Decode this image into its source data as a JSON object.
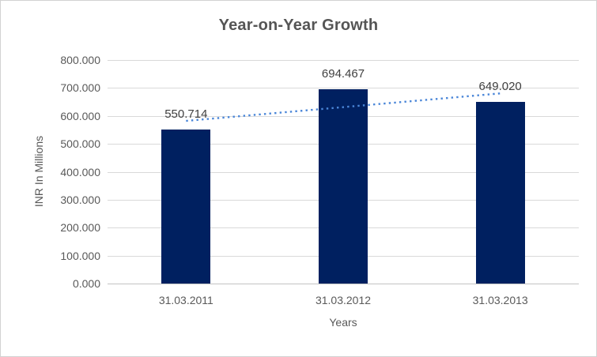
{
  "chart_data": {
    "type": "bar",
    "title": "Year-on-Year Growth",
    "xlabel": "Years",
    "ylabel": "INR In Millions",
    "categories": [
      "31.03.2011",
      "31.03.2012",
      "31.03.2013"
    ],
    "values": [
      550.714,
      694.467,
      649.02
    ],
    "data_labels": [
      "550.714",
      "694.467",
      "649.020"
    ],
    "ylim": [
      0,
      800
    ],
    "ytick_step": 100,
    "ytick_labels": [
      "0.000",
      "100.000",
      "200.000",
      "300.000",
      "400.000",
      "500.000",
      "600.000",
      "700.000",
      "800.000"
    ],
    "grid": true,
    "legend": "none",
    "trendline": {
      "type": "linear",
      "style": "dotted"
    },
    "colors": {
      "bar": "#002060",
      "trendline": "#4a86d8",
      "gridline": "#d9d9d9",
      "axis_line": "#c3c3c3",
      "title_text": "#555555",
      "tick_text": "#595959",
      "data_label_text": "#404040",
      "border": "#d2d2d2",
      "background": "#ffffff"
    }
  }
}
